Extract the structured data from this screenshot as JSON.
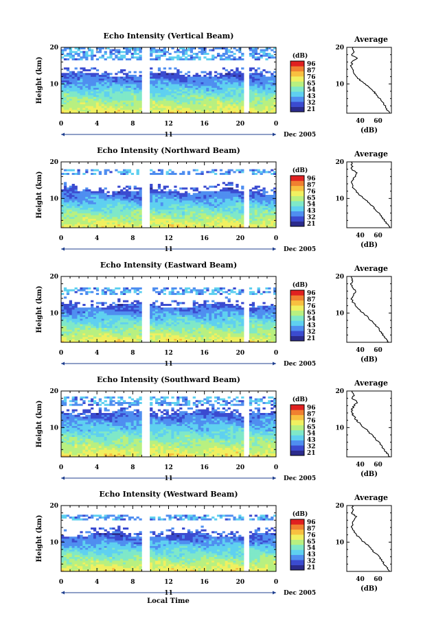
{
  "colors": {
    "scale": [
      "#2b2b8c",
      "#3b4bd0",
      "#4f8ef0",
      "#5fd0f0",
      "#7fe8c8",
      "#b8f080",
      "#f0f060",
      "#f8c040",
      "#f08030",
      "#e02020"
    ],
    "axis": "#000000",
    "accent_dec": "#1f3f8f"
  },
  "footer": {
    "xlabel": "Local Time"
  },
  "panels": [
    {
      "title": "Echo Intensity (Vertical Beam)",
      "ylabel": "Height (km)",
      "yticks": [
        "20",
        "10"
      ],
      "xticks": [
        "0",
        "4",
        "8",
        "12",
        "16",
        "20",
        "0"
      ],
      "day": "11",
      "date_label": "Dec 2005",
      "colorbar_unit": "(dB)",
      "colorbar_ticks": [
        "96",
        "87",
        "76",
        "65",
        "54",
        "43",
        "32",
        "21"
      ],
      "avg_title": "Average",
      "avg_yticks": [
        "20",
        "10"
      ],
      "avg_xticks": [
        "40",
        "60"
      ],
      "avg_xlabel": "(dB)"
    },
    {
      "title": "Echo Intensity (Northward Beam)",
      "ylabel": "Height (km)",
      "yticks": [
        "20",
        "10"
      ],
      "xticks": [
        "0",
        "4",
        "8",
        "12",
        "16",
        "20",
        "0"
      ],
      "day": "11",
      "date_label": "Dec 2005",
      "colorbar_unit": "(dB)",
      "colorbar_ticks": [
        "96",
        "87",
        "76",
        "65",
        "54",
        "43",
        "32",
        "21"
      ],
      "avg_title": "Average",
      "avg_yticks": [
        "20",
        "10"
      ],
      "avg_xticks": [
        "40",
        "60"
      ],
      "avg_xlabel": "(dB)"
    },
    {
      "title": "Echo Intensity (Eastward Beam)",
      "ylabel": "Height (km)",
      "yticks": [
        "20",
        "10"
      ],
      "xticks": [
        "0",
        "4",
        "8",
        "12",
        "16",
        "20",
        "0"
      ],
      "day": "11",
      "date_label": "Dec 2005",
      "colorbar_unit": "(dB)",
      "colorbar_ticks": [
        "96",
        "87",
        "76",
        "65",
        "54",
        "43",
        "32",
        "21"
      ],
      "avg_title": "Average",
      "avg_yticks": [
        "20",
        "10"
      ],
      "avg_xticks": [
        "40",
        "60"
      ],
      "avg_xlabel": "(dB)"
    },
    {
      "title": "Echo Intensity (Southward Beam)",
      "ylabel": "Height (km)",
      "yticks": [
        "20",
        "10"
      ],
      "xticks": [
        "0",
        "4",
        "8",
        "12",
        "16",
        "20",
        "0"
      ],
      "day": "11",
      "date_label": "Dec 2005",
      "colorbar_unit": "(dB)",
      "colorbar_ticks": [
        "96",
        "87",
        "76",
        "65",
        "54",
        "43",
        "32",
        "21"
      ],
      "avg_title": "Average",
      "avg_yticks": [
        "20",
        "10"
      ],
      "avg_xticks": [
        "40",
        "60"
      ],
      "avg_xlabel": "(dB)"
    },
    {
      "title": "Echo Intensity (Westward Beam)",
      "ylabel": "Height (km)",
      "yticks": [
        "20",
        "10"
      ],
      "xticks": [
        "0",
        "4",
        "8",
        "12",
        "16",
        "20",
        "0"
      ],
      "day": "11",
      "date_label": "Dec 2005",
      "colorbar_unit": "(dB)",
      "colorbar_ticks": [
        "96",
        "87",
        "76",
        "65",
        "54",
        "43",
        "32",
        "21"
      ],
      "avg_title": "Average",
      "avg_yticks": [
        "20",
        "10"
      ],
      "avg_xticks": [
        "40",
        "60"
      ],
      "avg_xlabel": "(dB)"
    }
  ],
  "chart_data": [
    {
      "type": "heatmap",
      "title": "Echo Intensity (Vertical Beam)",
      "xlabel": "Local Time",
      "ylabel": "Height (km)",
      "xlim": [
        0,
        24
      ],
      "ylim": [
        2,
        20
      ],
      "color_scale": {
        "label": "(dB)",
        "ticks": [
          96,
          87,
          76,
          65,
          54,
          43,
          32,
          21
        ]
      },
      "data_gaps_hours": [
        [
          9.1,
          9.9
        ],
        [
          20.4,
          21.0
        ]
      ],
      "upper_echo_km": [
        16.5,
        20
      ],
      "echo_top_km": 12.5,
      "profile": {
        "title": "Average",
        "xlabel": "(dB)",
        "xlim": [
          25,
          75
        ],
        "ylim": [
          2,
          20
        ],
        "height": [
          2,
          3,
          4,
          5,
          6,
          7,
          8,
          9,
          10,
          11,
          12,
          13,
          14,
          15,
          16,
          17,
          18,
          19,
          20
        ],
        "db": [
          73,
          70,
          68,
          65,
          62,
          58,
          55,
          50,
          45,
          40,
          36,
          33,
          31,
          30,
          31,
          36,
          30,
          33,
          32
        ]
      }
    },
    {
      "type": "heatmap",
      "title": "Echo Intensity (Northward Beam)",
      "xlabel": "Local Time",
      "ylabel": "Height (km)",
      "xlim": [
        0,
        24
      ],
      "ylim": [
        2,
        20
      ],
      "color_scale": {
        "label": "(dB)",
        "ticks": [
          96,
          87,
          76,
          65,
          54,
          43,
          32,
          21
        ]
      },
      "data_gaps_hours": [
        [
          9.1,
          9.9
        ],
        [
          20.4,
          21.0
        ]
      ],
      "upper_echo_km": [
        16.5,
        18
      ],
      "echo_top_km": 12,
      "profile": {
        "title": "Average",
        "xlabel": "(dB)",
        "xlim": [
          25,
          75
        ],
        "ylim": [
          2,
          20
        ],
        "height": [
          2,
          3,
          4,
          5,
          6,
          7,
          8,
          9,
          10,
          11,
          12,
          13,
          14,
          15,
          16,
          17,
          18,
          19,
          20
        ],
        "db": [
          73,
          70,
          67,
          64,
          61,
          57,
          53,
          49,
          44,
          39,
          35,
          32,
          31,
          31,
          34,
          37,
          30,
          31,
          30
        ]
      }
    },
    {
      "type": "heatmap",
      "title": "Echo Intensity (Eastward Beam)",
      "xlabel": "Local Time",
      "ylabel": "Height (km)",
      "xlim": [
        0,
        24
      ],
      "ylim": [
        2,
        20
      ],
      "color_scale": {
        "label": "(dB)",
        "ticks": [
          96,
          87,
          76,
          65,
          54,
          43,
          32,
          21
        ]
      },
      "data_gaps_hours": [
        [
          9.1,
          9.9
        ],
        [
          20.4,
          21.0
        ]
      ],
      "upper_echo_km": [
        15,
        17
      ],
      "echo_top_km": 12,
      "profile": {
        "title": "Average",
        "xlabel": "(dB)",
        "xlim": [
          25,
          75
        ],
        "ylim": [
          2,
          20
        ],
        "height": [
          2,
          3,
          4,
          5,
          6,
          7,
          8,
          9,
          10,
          11,
          12,
          13,
          14,
          15,
          16,
          17,
          18,
          19,
          20
        ],
        "db": [
          72,
          69,
          66,
          63,
          60,
          56,
          52,
          48,
          43,
          39,
          35,
          32,
          30,
          33,
          35,
          31,
          30,
          31,
          30
        ]
      }
    },
    {
      "type": "heatmap",
      "title": "Echo Intensity (Southward Beam)",
      "xlabel": "Local Time",
      "ylabel": "Height (km)",
      "xlim": [
        0,
        24
      ],
      "ylim": [
        2,
        20
      ],
      "color_scale": {
        "label": "(dB)",
        "ticks": [
          96,
          87,
          76,
          65,
          54,
          43,
          32,
          21
        ]
      },
      "data_gaps_hours": [
        [
          9.1,
          9.9
        ],
        [
          20.4,
          21.0
        ]
      ],
      "upper_echo_km": [
        16,
        18.5
      ],
      "echo_top_km": 14,
      "profile": {
        "title": "Average",
        "xlabel": "(dB)",
        "xlim": [
          25,
          75
        ],
        "ylim": [
          2,
          20
        ],
        "height": [
          2,
          3,
          4,
          5,
          6,
          7,
          8,
          9,
          10,
          11,
          12,
          13,
          14,
          15,
          16,
          17,
          18,
          19,
          20
        ],
        "db": [
          73,
          70,
          67,
          64,
          61,
          57,
          53,
          49,
          44,
          40,
          36,
          33,
          31,
          31,
          33,
          37,
          31,
          33,
          31
        ]
      }
    },
    {
      "type": "heatmap",
      "title": "Echo Intensity (Westward Beam)",
      "xlabel": "Local Time",
      "ylabel": "Height (km)",
      "xlim": [
        0,
        24
      ],
      "ylim": [
        2,
        20
      ],
      "color_scale": {
        "label": "(dB)",
        "ticks": [
          96,
          87,
          76,
          65,
          54,
          43,
          32,
          21
        ]
      },
      "data_gaps_hours": [
        [
          9.1,
          9.9
        ],
        [
          20.4,
          21.0
        ]
      ],
      "upper_echo_km": [
        16,
        17.5
      ],
      "echo_top_km": 12,
      "profile": {
        "title": "Average",
        "xlabel": "(dB)",
        "xlim": [
          25,
          75
        ],
        "ylim": [
          2,
          20
        ],
        "height": [
          2,
          3,
          4,
          5,
          6,
          7,
          8,
          9,
          10,
          11,
          12,
          13,
          14,
          15,
          16,
          17,
          18,
          19,
          20
        ],
        "db": [
          73,
          70,
          67,
          64,
          61,
          57,
          53,
          49,
          44,
          40,
          36,
          33,
          31,
          31,
          33,
          36,
          30,
          32,
          31
        ]
      }
    }
  ]
}
